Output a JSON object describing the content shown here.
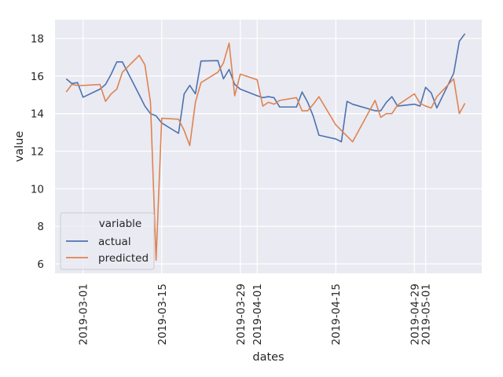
{
  "chart_data": {
    "type": "line",
    "xlabel": "dates",
    "ylabel": "value",
    "ylim": [
      5.5,
      19.0
    ],
    "xlim": [
      "2019-02-24",
      "2019-05-11"
    ],
    "x_ticks": [
      "2019-03-01",
      "2019-03-15",
      "2019-03-29",
      "2019-04-01",
      "2019-04-15",
      "2019-04-29",
      "2019-05-01"
    ],
    "y_ticks": [
      6,
      8,
      10,
      12,
      14,
      16,
      18
    ],
    "grid": true,
    "legend": {
      "title": "variable",
      "position": "lower-left"
    },
    "series": [
      {
        "name": "actual",
        "color": "#4c72b0",
        "points": [
          [
            "2019-02-26",
            15.85
          ],
          [
            "2019-02-27",
            15.6
          ],
          [
            "2019-02-28",
            15.65
          ],
          [
            "2019-03-01",
            14.87
          ],
          [
            "2019-03-04",
            15.3
          ],
          [
            "2019-03-05",
            15.55
          ],
          [
            "2019-03-06",
            16.1
          ],
          [
            "2019-03-07",
            16.75
          ],
          [
            "2019-03-08",
            16.75
          ],
          [
            "2019-03-11",
            15.0
          ],
          [
            "2019-03-12",
            14.4
          ],
          [
            "2019-03-13",
            14.0
          ],
          [
            "2019-03-14",
            13.88
          ],
          [
            "2019-03-15",
            13.5
          ],
          [
            "2019-03-18",
            12.95
          ],
          [
            "2019-03-19",
            15.05
          ],
          [
            "2019-03-20",
            15.5
          ],
          [
            "2019-03-21",
            15.05
          ],
          [
            "2019-03-22",
            16.8
          ],
          [
            "2019-03-25",
            16.82
          ],
          [
            "2019-03-26",
            15.85
          ],
          [
            "2019-03-27",
            16.35
          ],
          [
            "2019-03-28",
            15.55
          ],
          [
            "2019-03-29",
            15.3
          ],
          [
            "2019-04-01",
            14.95
          ],
          [
            "2019-04-02",
            14.85
          ],
          [
            "2019-04-03",
            14.9
          ],
          [
            "2019-04-04",
            14.85
          ],
          [
            "2019-04-05",
            14.35
          ],
          [
            "2019-04-08",
            14.35
          ],
          [
            "2019-04-09",
            15.15
          ],
          [
            "2019-04-10",
            14.6
          ],
          [
            "2019-04-11",
            13.85
          ],
          [
            "2019-04-12",
            12.85
          ],
          [
            "2019-04-15",
            12.65
          ],
          [
            "2019-04-16",
            12.5
          ],
          [
            "2019-04-17",
            14.65
          ],
          [
            "2019-04-18",
            14.5
          ],
          [
            "2019-04-22",
            14.15
          ],
          [
            "2019-04-23",
            14.15
          ],
          [
            "2019-04-24",
            14.6
          ],
          [
            "2019-04-25",
            14.9
          ],
          [
            "2019-04-26",
            14.4
          ],
          [
            "2019-04-29",
            14.5
          ],
          [
            "2019-04-30",
            14.4
          ],
          [
            "2019-05-01",
            15.4
          ],
          [
            "2019-05-02",
            15.1
          ],
          [
            "2019-05-03",
            14.3
          ],
          [
            "2019-05-06",
            16.15
          ],
          [
            "2019-05-07",
            17.85
          ],
          [
            "2019-05-08",
            18.25
          ]
        ]
      },
      {
        "name": "predicted",
        "color": "#dd8452",
        "points": [
          [
            "2019-02-26",
            15.15
          ],
          [
            "2019-02-27",
            15.55
          ],
          [
            "2019-02-28",
            15.5
          ],
          [
            "2019-03-01",
            15.5
          ],
          [
            "2019-03-04",
            15.55
          ],
          [
            "2019-03-05",
            14.65
          ],
          [
            "2019-03-06",
            15.05
          ],
          [
            "2019-03-07",
            15.3
          ],
          [
            "2019-03-08",
            16.2
          ],
          [
            "2019-03-11",
            17.1
          ],
          [
            "2019-03-12",
            16.6
          ],
          [
            "2019-03-13",
            14.6
          ],
          [
            "2019-03-14",
            6.2
          ],
          [
            "2019-03-15",
            13.75
          ],
          [
            "2019-03-18",
            13.7
          ],
          [
            "2019-03-19",
            13.1
          ],
          [
            "2019-03-20",
            12.3
          ],
          [
            "2019-03-21",
            14.6
          ],
          [
            "2019-03-22",
            15.65
          ],
          [
            "2019-03-25",
            16.2
          ],
          [
            "2019-03-26",
            16.7
          ],
          [
            "2019-03-27",
            17.75
          ],
          [
            "2019-03-28",
            14.95
          ],
          [
            "2019-03-29",
            16.1
          ],
          [
            "2019-04-01",
            15.8
          ],
          [
            "2019-04-02",
            14.4
          ],
          [
            "2019-04-03",
            14.6
          ],
          [
            "2019-04-04",
            14.5
          ],
          [
            "2019-04-05",
            14.7
          ],
          [
            "2019-04-08",
            14.85
          ],
          [
            "2019-04-09",
            14.15
          ],
          [
            "2019-04-10",
            14.15
          ],
          [
            "2019-04-11",
            14.5
          ],
          [
            "2019-04-12",
            14.9
          ],
          [
            "2019-04-15",
            13.4
          ],
          [
            "2019-04-18",
            12.5
          ],
          [
            "2019-04-22",
            14.7
          ],
          [
            "2019-04-23",
            13.8
          ],
          [
            "2019-04-24",
            14.0
          ],
          [
            "2019-04-25",
            14.0
          ],
          [
            "2019-04-26",
            14.45
          ],
          [
            "2019-04-29",
            15.05
          ],
          [
            "2019-04-30",
            14.55
          ],
          [
            "2019-05-01",
            14.4
          ],
          [
            "2019-05-02",
            14.3
          ],
          [
            "2019-05-03",
            14.9
          ],
          [
            "2019-05-06",
            15.85
          ],
          [
            "2019-05-07",
            14.0
          ],
          [
            "2019-05-08",
            14.55
          ]
        ]
      }
    ]
  }
}
